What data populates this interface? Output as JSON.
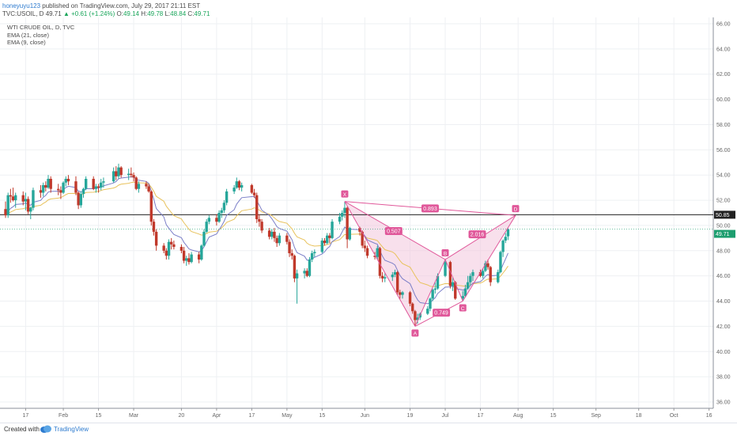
{
  "header": {
    "author": "honeyuyu123",
    "published": " published on TradingView.com, July 29, 2017 21:11 EST",
    "symbol": "TVC:USOIL, D",
    "last": "49.71",
    "change": "+0.61 (+1.24%)",
    "open_label": "O:",
    "open": "49.14",
    "high_label": "H:",
    "high": "49.78",
    "low_label": "L:",
    "low": "48.84",
    "close_label": "C:",
    "close": "49.71"
  },
  "legend": {
    "title": "WTI CRUDE OIL, D, TVC",
    "ema21": "EMA (21, close)",
    "ema9": "EMA (9, close)"
  },
  "footer": {
    "created": "Created with",
    "brand": "TradingView"
  },
  "colors": {
    "up": "#26a69a",
    "down": "#c0392b",
    "ema9": "#7b7fc8",
    "ema21": "#e8c25c",
    "pattern": "#e0589a",
    "pattern_fill": "#f3c6dd",
    "price_label_bg": "#1d9e6f",
    "level_label_bg": "#222222"
  },
  "chart_data": {
    "type": "candlestick",
    "title": "WTI CRUDE OIL, D, TVC",
    "ylim": [
      35.5,
      66.5
    ],
    "y_ticks": [
      "36.00",
      "38.00",
      "40.00",
      "42.00",
      "44.00",
      "46.00",
      "48.00",
      "50.00",
      "52.00",
      "54.00",
      "56.00",
      "58.00",
      "60.00",
      "62.00",
      "64.00",
      "66.00"
    ],
    "x_ticks": [
      "17",
      "Feb",
      "15",
      "Mar",
      "20",
      "Apr",
      "17",
      "May",
      "15",
      "Jun",
      "19",
      "Jul",
      "17",
      "Aug",
      "15",
      "Sep",
      "18",
      "Oct",
      "16"
    ],
    "horizontal_level": 50.85,
    "horizontal_level_label": "50.85",
    "last_price_label": "49.71",
    "last_price": 49.71,
    "candles": [
      {
        "date": "2017-01-09",
        "o": 51.3,
        "h": 51.9,
        "l": 50.6,
        "c": 50.8
      },
      {
        "date": "2017-01-10",
        "o": 50.8,
        "h": 52.6,
        "l": 50.6,
        "c": 52.4
      },
      {
        "date": "2017-01-11",
        "o": 52.4,
        "h": 52.9,
        "l": 51.8,
        "c": 52.3
      },
      {
        "date": "2017-01-12",
        "o": 52.3,
        "h": 53.0,
        "l": 51.9,
        "c": 52.0
      },
      {
        "date": "2017-01-13",
        "o": 52.0,
        "h": 52.6,
        "l": 51.4,
        "c": 52.4
      },
      {
        "date": "2017-01-16",
        "o": 52.4,
        "h": 52.7,
        "l": 51.6,
        "c": 51.9
      },
      {
        "date": "2017-01-17",
        "o": 51.9,
        "h": 52.6,
        "l": 51.2,
        "c": 52.1
      },
      {
        "date": "2017-01-18",
        "o": 52.1,
        "h": 52.3,
        "l": 50.9,
        "c": 51.1
      },
      {
        "date": "2017-01-19",
        "o": 51.1,
        "h": 51.5,
        "l": 50.5,
        "c": 51.4
      },
      {
        "date": "2017-01-20",
        "o": 51.4,
        "h": 53.0,
        "l": 51.2,
        "c": 52.8
      },
      {
        "date": "2017-01-23",
        "o": 52.8,
        "h": 53.2,
        "l": 52.2,
        "c": 52.6
      },
      {
        "date": "2017-01-24",
        "o": 52.6,
        "h": 53.4,
        "l": 52.3,
        "c": 53.2
      },
      {
        "date": "2017-01-25",
        "o": 53.2,
        "h": 53.5,
        "l": 52.7,
        "c": 53.0
      },
      {
        "date": "2017-01-26",
        "o": 53.0,
        "h": 54.0,
        "l": 52.9,
        "c": 53.7
      },
      {
        "date": "2017-01-27",
        "o": 53.7,
        "h": 53.9,
        "l": 52.6,
        "c": 52.9
      },
      {
        "date": "2017-01-30",
        "o": 52.9,
        "h": 53.3,
        "l": 52.4,
        "c": 52.8
      },
      {
        "date": "2017-01-31",
        "o": 52.8,
        "h": 53.1,
        "l": 52.1,
        "c": 52.6
      },
      {
        "date": "2017-02-01",
        "o": 52.6,
        "h": 53.5,
        "l": 52.5,
        "c": 53.4
      },
      {
        "date": "2017-02-02",
        "o": 53.4,
        "h": 53.9,
        "l": 53.1,
        "c": 53.7
      },
      {
        "date": "2017-02-03",
        "o": 53.7,
        "h": 54.0,
        "l": 53.2,
        "c": 53.5
      },
      {
        "date": "2017-02-06",
        "o": 53.5,
        "h": 53.9,
        "l": 52.4,
        "c": 52.6
      },
      {
        "date": "2017-02-07",
        "o": 52.6,
        "h": 52.7,
        "l": 51.3,
        "c": 51.6
      },
      {
        "date": "2017-02-08",
        "o": 51.6,
        "h": 52.7,
        "l": 51.4,
        "c": 52.5
      },
      {
        "date": "2017-02-09",
        "o": 52.5,
        "h": 53.0,
        "l": 52.2,
        "c": 52.9
      },
      {
        "date": "2017-02-10",
        "o": 52.9,
        "h": 53.9,
        "l": 52.8,
        "c": 53.7
      },
      {
        "date": "2017-02-13",
        "o": 53.7,
        "h": 53.9,
        "l": 52.8,
        "c": 52.9
      },
      {
        "date": "2017-02-14",
        "o": 52.9,
        "h": 53.3,
        "l": 52.6,
        "c": 53.1
      },
      {
        "date": "2017-02-15",
        "o": 53.1,
        "h": 53.3,
        "l": 52.6,
        "c": 53.0
      },
      {
        "date": "2017-02-16",
        "o": 53.0,
        "h": 53.7,
        "l": 52.8,
        "c": 53.4
      },
      {
        "date": "2017-02-17",
        "o": 53.4,
        "h": 53.8,
        "l": 53.0,
        "c": 53.5
      },
      {
        "date": "2017-02-21",
        "o": 53.5,
        "h": 54.6,
        "l": 53.4,
        "c": 54.3
      },
      {
        "date": "2017-02-22",
        "o": 54.3,
        "h": 54.7,
        "l": 53.6,
        "c": 53.9
      },
      {
        "date": "2017-02-23",
        "o": 53.9,
        "h": 54.9,
        "l": 53.7,
        "c": 54.6
      },
      {
        "date": "2017-02-24",
        "o": 54.6,
        "h": 54.7,
        "l": 53.8,
        "c": 54.0
      },
      {
        "date": "2017-02-27",
        "o": 54.0,
        "h": 54.5,
        "l": 53.6,
        "c": 54.1
      },
      {
        "date": "2017-02-28",
        "o": 54.1,
        "h": 54.6,
        "l": 53.8,
        "c": 54.0
      },
      {
        "date": "2017-03-01",
        "o": 54.0,
        "h": 54.2,
        "l": 53.5,
        "c": 53.8
      },
      {
        "date": "2017-03-02",
        "o": 53.8,
        "h": 53.9,
        "l": 52.8,
        "c": 52.9
      },
      {
        "date": "2017-03-03",
        "o": 52.9,
        "h": 53.5,
        "l": 52.6,
        "c": 53.3
      },
      {
        "date": "2017-03-06",
        "o": 53.3,
        "h": 53.5,
        "l": 52.9,
        "c": 53.1
      },
      {
        "date": "2017-03-07",
        "o": 53.1,
        "h": 53.3,
        "l": 52.6,
        "c": 52.7
      },
      {
        "date": "2017-03-08",
        "o": 52.7,
        "h": 52.8,
        "l": 50.0,
        "c": 50.3
      },
      {
        "date": "2017-03-09",
        "o": 50.3,
        "h": 50.5,
        "l": 49.2,
        "c": 49.5
      },
      {
        "date": "2017-03-10",
        "o": 49.5,
        "h": 49.7,
        "l": 48.0,
        "c": 48.4
      },
      {
        "date": "2017-03-13",
        "o": 48.4,
        "h": 48.6,
        "l": 47.8,
        "c": 48.0
      },
      {
        "date": "2017-03-14",
        "o": 48.0,
        "h": 48.2,
        "l": 47.3,
        "c": 47.6
      },
      {
        "date": "2017-03-15",
        "o": 47.6,
        "h": 48.9,
        "l": 47.3,
        "c": 48.7
      },
      {
        "date": "2017-03-16",
        "o": 48.7,
        "h": 49.0,
        "l": 48.1,
        "c": 48.5
      },
      {
        "date": "2017-03-17",
        "o": 48.5,
        "h": 48.8,
        "l": 48.1,
        "c": 48.3
      },
      {
        "date": "2017-03-20",
        "o": 48.3,
        "h": 48.5,
        "l": 47.8,
        "c": 48.0
      },
      {
        "date": "2017-03-21",
        "o": 48.0,
        "h": 48.3,
        "l": 47.0,
        "c": 47.2
      },
      {
        "date": "2017-03-22",
        "o": 47.2,
        "h": 47.6,
        "l": 46.8,
        "c": 47.4
      },
      {
        "date": "2017-03-23",
        "o": 47.4,
        "h": 47.8,
        "l": 46.9,
        "c": 47.1
      },
      {
        "date": "2017-03-24",
        "o": 47.1,
        "h": 47.9,
        "l": 47.0,
        "c": 47.7
      },
      {
        "date": "2017-03-27",
        "o": 47.7,
        "h": 47.9,
        "l": 47.0,
        "c": 47.3
      },
      {
        "date": "2017-03-28",
        "o": 47.3,
        "h": 48.5,
        "l": 47.2,
        "c": 48.4
      },
      {
        "date": "2017-03-29",
        "o": 48.4,
        "h": 49.7,
        "l": 48.3,
        "c": 49.5
      },
      {
        "date": "2017-03-30",
        "o": 49.5,
        "h": 50.5,
        "l": 49.4,
        "c": 50.3
      },
      {
        "date": "2017-03-31",
        "o": 50.3,
        "h": 50.8,
        "l": 50.1,
        "c": 50.6
      },
      {
        "date": "2017-04-03",
        "o": 50.6,
        "h": 50.9,
        "l": 50.0,
        "c": 50.3
      },
      {
        "date": "2017-04-04",
        "o": 50.3,
        "h": 51.2,
        "l": 50.2,
        "c": 51.0
      },
      {
        "date": "2017-04-05",
        "o": 51.0,
        "h": 51.4,
        "l": 50.6,
        "c": 51.2
      },
      {
        "date": "2017-04-06",
        "o": 51.2,
        "h": 52.0,
        "l": 51.0,
        "c": 51.8
      },
      {
        "date": "2017-04-07",
        "o": 51.8,
        "h": 52.9,
        "l": 51.6,
        "c": 52.7
      },
      {
        "date": "2017-04-10",
        "o": 52.7,
        "h": 53.2,
        "l": 52.5,
        "c": 53.0
      },
      {
        "date": "2017-04-11",
        "o": 53.0,
        "h": 53.8,
        "l": 52.9,
        "c": 53.5
      },
      {
        "date": "2017-04-12",
        "o": 53.5,
        "h": 53.6,
        "l": 52.8,
        "c": 53.0
      },
      {
        "date": "2017-04-13",
        "o": 53.0,
        "h": 53.4,
        "l": 52.7,
        "c": 53.2
      },
      {
        "date": "2017-04-17",
        "o": 53.2,
        "h": 53.3,
        "l": 52.5,
        "c": 52.6
      },
      {
        "date": "2017-04-18",
        "o": 52.6,
        "h": 52.9,
        "l": 52.2,
        "c": 52.4
      },
      {
        "date": "2017-04-19",
        "o": 52.4,
        "h": 52.6,
        "l": 50.2,
        "c": 50.5
      },
      {
        "date": "2017-04-20",
        "o": 50.5,
        "h": 50.9,
        "l": 49.9,
        "c": 50.3
      },
      {
        "date": "2017-04-21",
        "o": 50.3,
        "h": 50.5,
        "l": 49.4,
        "c": 49.6
      },
      {
        "date": "2017-04-24",
        "o": 49.6,
        "h": 49.8,
        "l": 48.9,
        "c": 49.1
      },
      {
        "date": "2017-04-25",
        "o": 49.1,
        "h": 49.7,
        "l": 48.9,
        "c": 49.5
      },
      {
        "date": "2017-04-26",
        "o": 49.5,
        "h": 49.8,
        "l": 48.7,
        "c": 49.0
      },
      {
        "date": "2017-04-27",
        "o": 49.0,
        "h": 49.2,
        "l": 48.3,
        "c": 48.6
      },
      {
        "date": "2017-04-28",
        "o": 48.6,
        "h": 49.4,
        "l": 48.4,
        "c": 49.2
      },
      {
        "date": "2017-05-01",
        "o": 49.2,
        "h": 49.4,
        "l": 48.5,
        "c": 48.7
      },
      {
        "date": "2017-05-02",
        "o": 48.7,
        "h": 48.9,
        "l": 47.5,
        "c": 47.8
      },
      {
        "date": "2017-05-03",
        "o": 47.8,
        "h": 48.1,
        "l": 47.3,
        "c": 47.6
      },
      {
        "date": "2017-05-04",
        "o": 47.6,
        "h": 47.7,
        "l": 45.5,
        "c": 45.8
      },
      {
        "date": "2017-05-05",
        "o": 45.8,
        "h": 46.5,
        "l": 43.8,
        "c": 46.2
      },
      {
        "date": "2017-05-08",
        "o": 46.2,
        "h": 46.6,
        "l": 45.8,
        "c": 46.4
      },
      {
        "date": "2017-05-09",
        "o": 46.4,
        "h": 46.6,
        "l": 45.9,
        "c": 46.0
      },
      {
        "date": "2017-05-10",
        "o": 46.0,
        "h": 47.5,
        "l": 45.9,
        "c": 47.3
      },
      {
        "date": "2017-05-11",
        "o": 47.3,
        "h": 48.0,
        "l": 47.1,
        "c": 47.8
      },
      {
        "date": "2017-05-12",
        "o": 47.8,
        "h": 48.1,
        "l": 47.5,
        "c": 47.9
      },
      {
        "date": "2017-05-15",
        "o": 47.9,
        "h": 49.0,
        "l": 47.8,
        "c": 48.8
      },
      {
        "date": "2017-05-16",
        "o": 48.8,
        "h": 49.0,
        "l": 48.4,
        "c": 48.6
      },
      {
        "date": "2017-05-17",
        "o": 48.6,
        "h": 49.4,
        "l": 48.5,
        "c": 49.2
      },
      {
        "date": "2017-05-18",
        "o": 49.2,
        "h": 49.4,
        "l": 48.6,
        "c": 49.0
      },
      {
        "date": "2017-05-19",
        "o": 49.0,
        "h": 50.5,
        "l": 48.9,
        "c": 50.3
      },
      {
        "date": "2017-05-22",
        "o": 50.3,
        "h": 51.0,
        "l": 50.1,
        "c": 50.7
      },
      {
        "date": "2017-05-23",
        "o": 50.7,
        "h": 51.2,
        "l": 50.4,
        "c": 51.0
      },
      {
        "date": "2017-05-24",
        "o": 51.0,
        "h": 51.9,
        "l": 50.6,
        "c": 51.4
      },
      {
        "date": "2017-05-25",
        "o": 51.4,
        "h": 51.5,
        "l": 48.2,
        "c": 48.9
      },
      {
        "date": "2017-05-26",
        "o": 48.9,
        "h": 49.9,
        "l": 48.8,
        "c": 49.8
      },
      {
        "date": "2017-05-30",
        "o": 49.8,
        "h": 49.9,
        "l": 49.2,
        "c": 49.5
      },
      {
        "date": "2017-05-31",
        "o": 49.5,
        "h": 49.6,
        "l": 48.2,
        "c": 48.4
      },
      {
        "date": "2017-06-01",
        "o": 48.4,
        "h": 48.8,
        "l": 47.9,
        "c": 48.2
      },
      {
        "date": "2017-06-02",
        "o": 48.2,
        "h": 48.4,
        "l": 47.4,
        "c": 47.6
      },
      {
        "date": "2017-06-05",
        "o": 47.6,
        "h": 47.9,
        "l": 47.3,
        "c": 47.5
      },
      {
        "date": "2017-06-06",
        "o": 47.5,
        "h": 48.4,
        "l": 47.3,
        "c": 48.2
      },
      {
        "date": "2017-06-07",
        "o": 48.2,
        "h": 48.3,
        "l": 45.8,
        "c": 46.0
      },
      {
        "date": "2017-06-08",
        "o": 46.0,
        "h": 46.3,
        "l": 45.5,
        "c": 45.8
      },
      {
        "date": "2017-06-09",
        "o": 45.8,
        "h": 46.2,
        "l": 45.5,
        "c": 45.9
      },
      {
        "date": "2017-06-12",
        "o": 45.9,
        "h": 46.3,
        "l": 45.6,
        "c": 46.1
      },
      {
        "date": "2017-06-13",
        "o": 46.1,
        "h": 46.5,
        "l": 45.9,
        "c": 46.3
      },
      {
        "date": "2017-06-14",
        "o": 46.3,
        "h": 46.4,
        "l": 44.5,
        "c": 44.7
      },
      {
        "date": "2017-06-15",
        "o": 44.7,
        "h": 44.9,
        "l": 44.2,
        "c": 44.5
      },
      {
        "date": "2017-06-16",
        "o": 44.5,
        "h": 44.8,
        "l": 44.2,
        "c": 44.7
      },
      {
        "date": "2017-06-19",
        "o": 44.7,
        "h": 44.8,
        "l": 43.6,
        "c": 43.8
      },
      {
        "date": "2017-06-20",
        "o": 43.8,
        "h": 43.9,
        "l": 43.0,
        "c": 43.2
      },
      {
        "date": "2017-06-21",
        "o": 43.2,
        "h": 43.3,
        "l": 42.0,
        "c": 42.5
      },
      {
        "date": "2017-06-22",
        "o": 42.5,
        "h": 43.0,
        "l": 42.2,
        "c": 42.7
      },
      {
        "date": "2017-06-23",
        "o": 42.7,
        "h": 43.1,
        "l": 42.5,
        "c": 43.0
      },
      {
        "date": "2017-06-26",
        "o": 43.0,
        "h": 43.6,
        "l": 42.9,
        "c": 43.4
      },
      {
        "date": "2017-06-27",
        "o": 43.4,
        "h": 44.3,
        "l": 43.2,
        "c": 44.2
      },
      {
        "date": "2017-06-28",
        "o": 44.2,
        "h": 45.0,
        "l": 44.0,
        "c": 44.9
      },
      {
        "date": "2017-06-29",
        "o": 44.9,
        "h": 45.5,
        "l": 44.6,
        "c": 45.0
      },
      {
        "date": "2017-06-30",
        "o": 45.0,
        "h": 46.2,
        "l": 44.9,
        "c": 46.0
      },
      {
        "date": "2017-07-03",
        "o": 46.0,
        "h": 47.3,
        "l": 45.9,
        "c": 47.1
      },
      {
        "date": "2017-07-05",
        "o": 47.1,
        "h": 47.2,
        "l": 45.0,
        "c": 45.2
      },
      {
        "date": "2017-07-06",
        "o": 45.2,
        "h": 45.9,
        "l": 44.8,
        "c": 45.5
      },
      {
        "date": "2017-07-07",
        "o": 45.5,
        "h": 45.6,
        "l": 44.1,
        "c": 44.2
      },
      {
        "date": "2017-07-10",
        "o": 44.2,
        "h": 44.8,
        "l": 44.0,
        "c": 44.4
      },
      {
        "date": "2017-07-11",
        "o": 44.4,
        "h": 45.3,
        "l": 44.3,
        "c": 45.0
      },
      {
        "date": "2017-07-12",
        "o": 45.0,
        "h": 46.0,
        "l": 44.9,
        "c": 45.5
      },
      {
        "date": "2017-07-13",
        "o": 45.5,
        "h": 46.2,
        "l": 45.3,
        "c": 46.0
      },
      {
        "date": "2017-07-14",
        "o": 46.0,
        "h": 46.5,
        "l": 45.6,
        "c": 46.3
      },
      {
        "date": "2017-07-17",
        "o": 46.3,
        "h": 46.5,
        "l": 45.9,
        "c": 46.0
      },
      {
        "date": "2017-07-18",
        "o": 46.0,
        "h": 46.6,
        "l": 45.8,
        "c": 46.4
      },
      {
        "date": "2017-07-19",
        "o": 46.4,
        "h": 47.2,
        "l": 46.3,
        "c": 47.0
      },
      {
        "date": "2017-07-20",
        "o": 47.0,
        "h": 47.3,
        "l": 46.5,
        "c": 46.7
      },
      {
        "date": "2017-07-21",
        "o": 46.7,
        "h": 46.8,
        "l": 45.2,
        "c": 45.5
      },
      {
        "date": "2017-07-24",
        "o": 45.5,
        "h": 46.5,
        "l": 45.4,
        "c": 46.3
      },
      {
        "date": "2017-07-25",
        "o": 46.3,
        "h": 48.0,
        "l": 46.2,
        "c": 47.9
      },
      {
        "date": "2017-07-26",
        "o": 47.9,
        "h": 48.9,
        "l": 47.5,
        "c": 48.8
      },
      {
        "date": "2017-07-27",
        "o": 48.8,
        "h": 49.4,
        "l": 48.6,
        "c": 49.1
      },
      {
        "date": "2017-07-28",
        "o": 49.14,
        "h": 49.78,
        "l": 48.84,
        "c": 49.71
      }
    ],
    "harmonic_pattern": {
      "points": [
        {
          "label": "X",
          "date": "2017-05-24",
          "price": 51.9
        },
        {
          "label": "A",
          "date": "2017-06-21",
          "price": 42.0
        },
        {
          "label": "B",
          "date": "2017-07-03",
          "price": 47.3
        },
        {
          "label": "C",
          "date": "2017-07-10",
          "price": 44.0
        },
        {
          "label": "D",
          "date": "2017-07-31",
          "price": 50.8
        }
      ],
      "ratios": [
        {
          "label": "0.507",
          "between": "X-B"
        },
        {
          "label": "0.749",
          "between": "A-C"
        },
        {
          "label": "2.016",
          "between": "B-D"
        },
        {
          "label": "0.893",
          "between": "X-D"
        }
      ]
    }
  }
}
